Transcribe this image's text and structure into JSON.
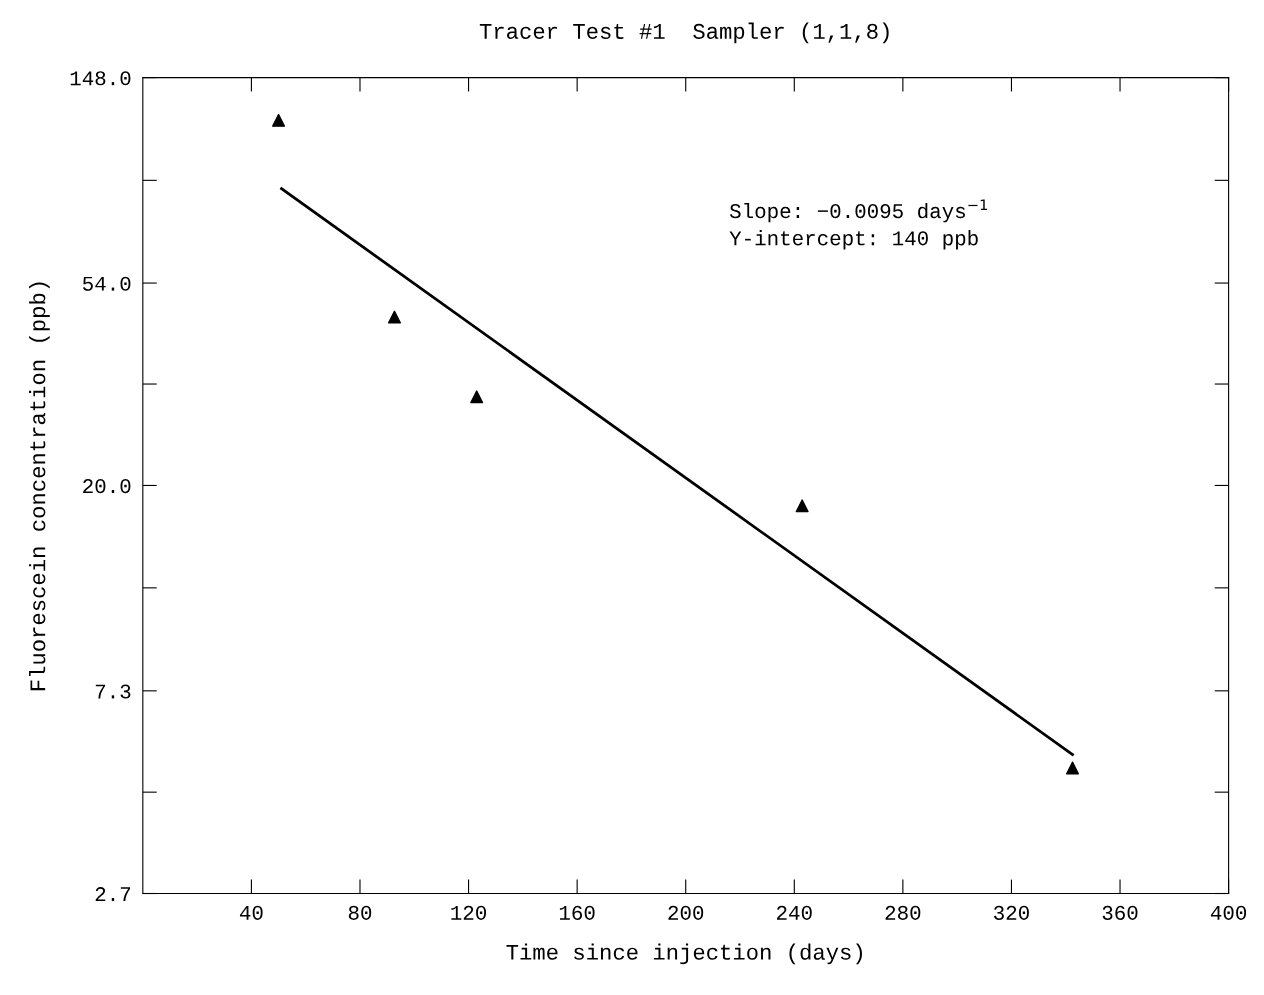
{
  "chart_data": {
    "type": "scatter",
    "title": "Tracer Test #1  Sampler (1,1,8)",
    "xlabel": "Time since injection (days)",
    "ylabel": "Fluorescein concentration (ppb)",
    "series": [
      {
        "color": "#000000",
        "marker": "triangle",
        "x": [
          50.0,
          92.7,
          123.0,
          242.9,
          342.5
        ],
        "values": [
          120,
          45.7,
          30.9,
          18.1,
          5.0
        ]
      },
      {
        "type": "line",
        "color": "#000000",
        "marker": "none",
        "line_style": "solid",
        "x": [
          51.1,
          342.5
        ],
        "values": [
          85.8,
          5.34
        ]
      }
    ],
    "log": "y",
    "xlim": [
      0,
      400
    ],
    "xticks": [
      40,
      80,
      120,
      160,
      200,
      240,
      280,
      320,
      360,
      400
    ],
    "ylim": [
      2.7,
      148.0
    ],
    "yticks": [
      {
        "value": 2.7,
        "label": "2.7"
      },
      {
        "value": 4.44,
        "label": null
      },
      {
        "value": 7.3,
        "label": "7.3"
      },
      {
        "value": 12.1,
        "label": null
      },
      {
        "value": 20.0,
        "label": "20.0"
      },
      {
        "value": 32.9,
        "label": null
      },
      {
        "value": 54.0,
        "label": "54.0"
      },
      {
        "value": 89.4,
        "label": null
      },
      {
        "value": 148.0,
        "label": "148.0"
      }
    ],
    "annotations": [
      "Slope: −0.0095 days$^{−1}$\nY-intercept: 140 ppb"
    ],
    "grid": false,
    "legend": false
  }
}
